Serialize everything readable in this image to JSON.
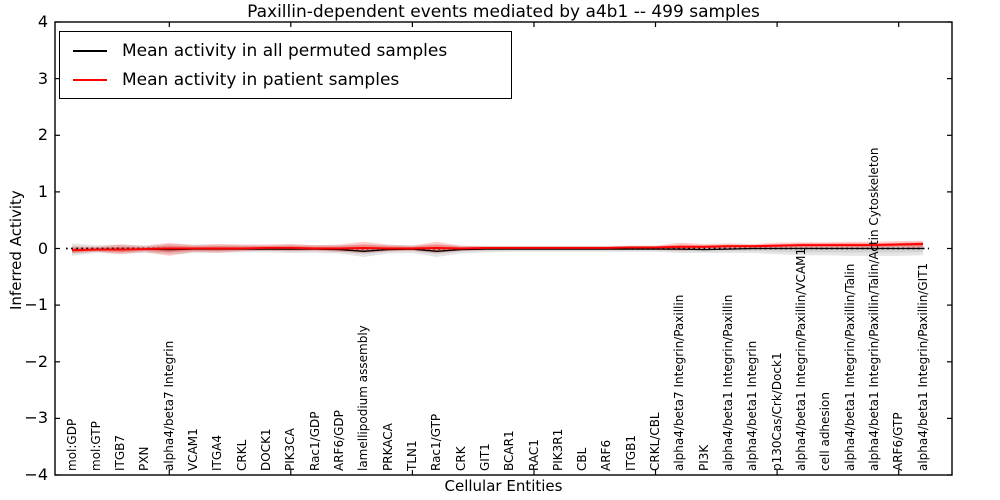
{
  "title": "Paxillin-dependent events mediated by a4b1 -- 499 samples",
  "axes": {
    "x_label": "Cellular Entities",
    "y_label": "Inferred Activity"
  },
  "legend": {
    "items": [
      {
        "label": "Mean activity in all permuted samples",
        "color": "#000000"
      },
      {
        "label": "Mean activity in patient samples",
        "color": "#ff0000"
      }
    ],
    "position": "upper-left"
  },
  "chart_data": {
    "type": "line",
    "title": "Paxillin-dependent events mediated by a4b1 -- 499 samples",
    "xlabel": "Cellular Entities",
    "ylabel": "Inferred Activity",
    "ylim": [
      -4,
      4
    ],
    "yticks": [
      -4,
      -3,
      -2,
      -1,
      0,
      1,
      2,
      3,
      4
    ],
    "ytick_labels": [
      "−4",
      "−3",
      "−2",
      "−1",
      "0",
      "1",
      "2",
      "3",
      "4"
    ],
    "xtick_positions": [
      5,
      10,
      15,
      20,
      25,
      30,
      35
    ],
    "grid": false,
    "categories": [
      "mol:GDP",
      "mol:GTP",
      "ITGB7",
      "PXN",
      "alpha4/beta7 Integrin",
      "VCAM1",
      "ITGA4",
      "CRKL",
      "DOCK1",
      "PIK3CA",
      "Rac1/GDP",
      "ARF6/GDP",
      "lamellipodium assembly",
      "PRKACA",
      "TLN1",
      "Rac1/GTP",
      "CRK",
      "GIT1",
      "BCAR1",
      "RAC1",
      "PIK3R1",
      "CBL",
      "ARF6",
      "ITGB1",
      "CRKL/CBL",
      "alpha4/beta7 Integrin/Paxillin",
      "PI3K",
      "alpha4/beta1 Integrin/Paxillin",
      "alpha4/beta1 Integrin",
      "p130Cas/Crk/Dock1",
      "alpha4/beta1 Integrin/Paxillin/VCAM1",
      "cell adhesion",
      "alpha4/beta1 Integrin/Paxillin/Talin",
      "alpha4/beta1 Integrin/Paxillin/Talin/Actin Cytoskeleton",
      "ARF6/GTP",
      "alpha4/beta1 Integrin/Paxillin/GIT1"
    ],
    "series": [
      {
        "name": "Mean activity in all permuted samples",
        "color": "#000000",
        "values": [
          -0.03,
          -0.02,
          -0.01,
          -0.01,
          -0.02,
          -0.01,
          -0.01,
          -0.01,
          -0.01,
          -0.01,
          -0.01,
          -0.02,
          -0.05,
          -0.02,
          -0.01,
          -0.05,
          -0.02,
          -0.01,
          -0.01,
          -0.01,
          -0.01,
          -0.01,
          -0.01,
          -0.01,
          -0.01,
          -0.01,
          -0.02,
          -0.01,
          0,
          0,
          0,
          0,
          0,
          0,
          0,
          0
        ]
      },
      {
        "name": "Mean activity in patient samples",
        "color": "#ff0000",
        "values": [
          -0.03,
          -0.02,
          -0.02,
          -0.01,
          0,
          0,
          0,
          0,
          0.01,
          0.01,
          0,
          0,
          0.01,
          0,
          0,
          0.01,
          0,
          0.01,
          0.01,
          0.01,
          0.01,
          0.01,
          0.01,
          0.02,
          0.02,
          0.03,
          0.03,
          0.04,
          0.04,
          0.05,
          0.06,
          0.06,
          0.06,
          0.06,
          0.07,
          0.08
        ]
      }
    ],
    "bands": [
      {
        "name": "permuted-samples-range",
        "color": "rgba(0,0,0,0.10)",
        "upper": [
          0.09,
          0.06,
          0.07,
          0.06,
          0.08,
          0.07,
          0.07,
          0.06,
          0.06,
          0.07,
          0.06,
          0.06,
          0.07,
          0.06,
          0.06,
          0.07,
          0.05,
          0.05,
          0.05,
          0.05,
          0.05,
          0.05,
          0.05,
          0.05,
          0.05,
          0.05,
          0.05,
          0.06,
          0.06,
          0.06,
          0.07,
          0.07,
          0.08,
          0.08,
          0.09,
          0.1
        ],
        "lower": [
          -0.13,
          -0.08,
          -0.09,
          -0.08,
          -0.1,
          -0.08,
          -0.08,
          -0.07,
          -0.07,
          -0.08,
          -0.08,
          -0.09,
          -0.15,
          -0.09,
          -0.08,
          -0.15,
          -0.09,
          -0.07,
          -0.06,
          -0.06,
          -0.06,
          -0.06,
          -0.06,
          -0.06,
          -0.06,
          -0.08,
          -0.08,
          -0.08,
          -0.08,
          -0.1,
          -0.12,
          -0.12,
          -0.13,
          -0.13,
          -0.13,
          -0.12
        ]
      },
      {
        "name": "patient-samples-range",
        "color": "rgba(255,0,0,0.20)",
        "upper": [
          0.04,
          0.03,
          0.07,
          0.04,
          0.1,
          0.06,
          0.08,
          0.07,
          0.07,
          0.08,
          0.06,
          0.07,
          0.12,
          0.07,
          0.05,
          0.12,
          0.05,
          0.04,
          0.04,
          0.04,
          0.04,
          0.04,
          0.04,
          0.05,
          0.05,
          0.1,
          0.08,
          0.09,
          0.08,
          0.1,
          0.11,
          0.11,
          0.12,
          0.12,
          0.13,
          0.14
        ],
        "lower": [
          -0.09,
          -0.06,
          -0.1,
          -0.06,
          -0.13,
          -0.06,
          -0.07,
          -0.05,
          -0.04,
          -0.05,
          -0.04,
          -0.06,
          -0.08,
          -0.05,
          -0.04,
          -0.08,
          -0.04,
          -0.03,
          -0.02,
          -0.02,
          -0.02,
          -0.02,
          -0.02,
          -0.02,
          -0.02,
          -0.04,
          -0.02,
          0,
          0,
          0,
          0,
          0.01,
          0.01,
          0.01,
          0.02,
          0
        ]
      }
    ],
    "zero_line": {
      "style": "dotted",
      "color": "#000000",
      "y": 0
    }
  }
}
